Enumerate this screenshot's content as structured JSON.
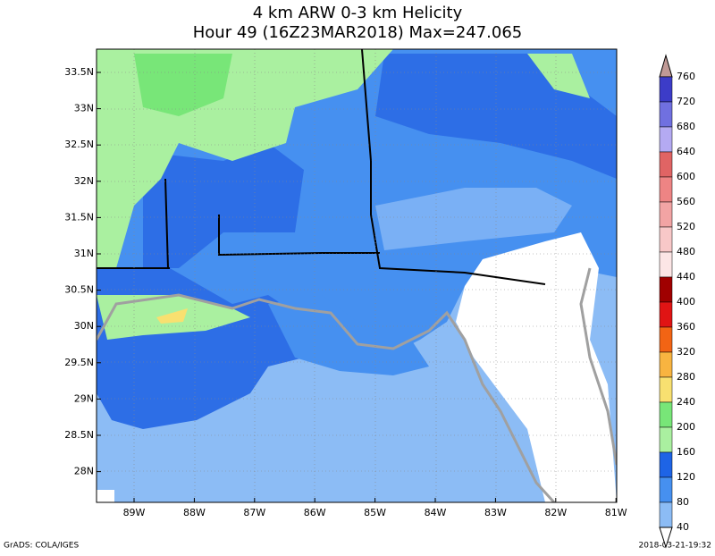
{
  "header": {
    "title": "4 km ARW 0-3 km Helicity",
    "subtitle": "Hour 49 (16Z23MAR2018) Max=247.065"
  },
  "map": {
    "lat_labels": [
      "33.5N",
      "33N",
      "32.5N",
      "32N",
      "31.5N",
      "31N",
      "30.5N",
      "30N",
      "29.5N",
      "29N",
      "28.5N",
      "28N"
    ],
    "lon_labels": [
      "89W",
      "88W",
      "87W",
      "86W",
      "85W",
      "84W",
      "83W",
      "82W",
      "81W"
    ]
  },
  "colorbar": {
    "levels": [
      760,
      720,
      680,
      640,
      600,
      560,
      520,
      480,
      440,
      400,
      360,
      320,
      280,
      240,
      200,
      160,
      120,
      80,
      40
    ],
    "colors": [
      "#3c3cc8",
      "#7070e0",
      "#b4aaf2",
      "#e06464",
      "#ee8484",
      "#f2a4a4",
      "#f8c8c8",
      "#fce6e6",
      "#a00000",
      "#e01414",
      "#f26414",
      "#f8b440",
      "#f8e070",
      "#78e678",
      "#aaf0a0",
      "#1e64e6",
      "#4690f0",
      "#8cbcf5"
    ],
    "over_color": "#c09a96",
    "under_color": "#ffffff"
  },
  "footer": {
    "left": "GrADS: COLA/IGES",
    "right": "2018-03-21-19:32"
  }
}
